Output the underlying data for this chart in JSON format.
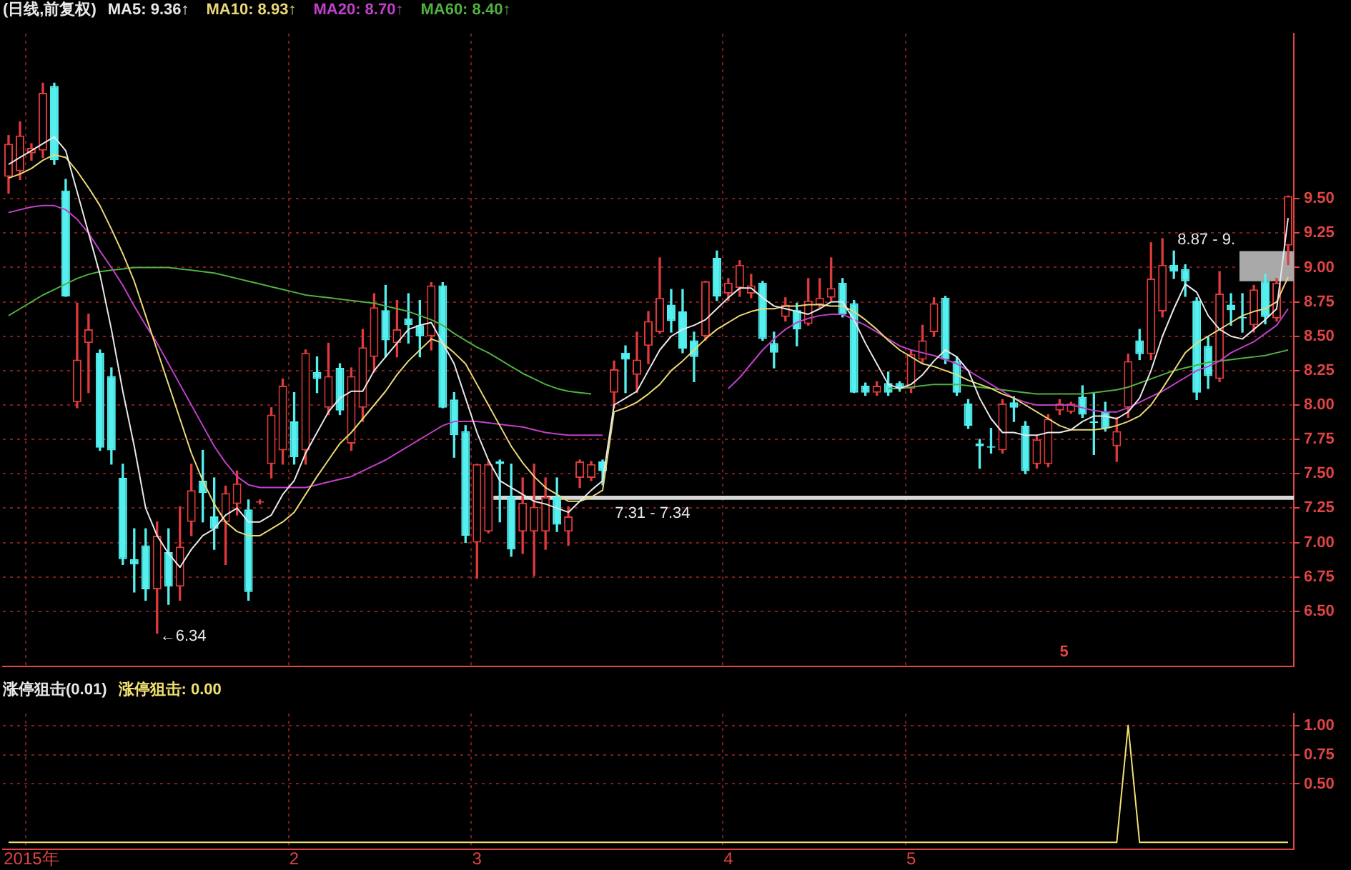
{
  "chart_data": [
    {
      "type": "candlestick",
      "title": "(日线,前复权)",
      "categories": [
        null,
        null,
        null,
        null,
        null,
        null,
        null,
        null,
        null,
        null,
        null,
        null,
        null,
        null,
        null,
        null,
        null,
        null,
        null,
        null,
        null,
        null,
        null,
        null,
        null,
        null,
        null,
        null,
        null,
        null,
        null,
        null,
        null,
        null,
        null,
        null,
        null,
        null,
        null,
        null,
        null,
        null,
        null,
        null,
        null,
        null,
        null,
        null,
        null,
        null,
        null,
        null,
        null,
        null,
        null,
        null,
        null,
        null,
        null,
        null,
        null,
        null,
        null,
        null,
        null,
        null,
        null,
        null,
        null,
        null,
        null,
        null,
        null,
        null,
        null,
        null,
        null,
        null,
        null,
        null,
        null,
        null,
        null,
        null,
        null,
        null,
        null,
        null,
        null,
        null,
        null,
        null,
        null,
        null,
        null,
        null,
        null,
        null,
        null,
        null,
        null,
        null,
        null,
        null,
        null,
        null,
        null,
        null,
        null,
        null,
        null,
        null,
        null
      ],
      "ohlc": [
        [
          9.66,
          9.96,
          9.54,
          9.9
        ],
        [
          9.7,
          10.06,
          9.64,
          9.96
        ],
        [
          9.83,
          9.9,
          9.78,
          9.87
        ],
        [
          9.85,
          10.34,
          9.8,
          10.27
        ],
        [
          10.32,
          10.34,
          9.75,
          9.78
        ],
        [
          9.56,
          9.64,
          8.79,
          8.79
        ],
        [
          8.02,
          8.74,
          7.98,
          8.33
        ],
        [
          8.45,
          8.66,
          8.09,
          8.55
        ],
        [
          8.38,
          8.4,
          7.67,
          7.69
        ],
        [
          8.21,
          8.27,
          7.57,
          7.67
        ],
        [
          7.47,
          7.57,
          6.84,
          6.88
        ],
        [
          6.88,
          7.1,
          6.64,
          6.84
        ],
        [
          6.98,
          7.1,
          6.58,
          6.66
        ],
        [
          6.66,
          7.15,
          6.34,
          7.05
        ],
        [
          6.93,
          7.1,
          6.55,
          6.68
        ],
        [
          6.68,
          7.26,
          6.58,
          6.97
        ],
        [
          7.15,
          7.57,
          7.05,
          7.38
        ],
        [
          7.45,
          7.67,
          7.15,
          7.36
        ],
        [
          7.19,
          7.47,
          6.95,
          7.1
        ],
        [
          7.15,
          7.41,
          6.84,
          7.36
        ],
        [
          7.28,
          7.52,
          7.2,
          7.43
        ],
        [
          7.24,
          7.31,
          6.58,
          6.64
        ],
        [
          7.29,
          7.31,
          7.28,
          7.3
        ],
        [
          7.57,
          7.98,
          7.47,
          7.93
        ],
        [
          7.67,
          8.19,
          7.57,
          8.14
        ],
        [
          7.88,
          8.09,
          7.57,
          7.62
        ],
        [
          7.67,
          8.4,
          7.57,
          8.38
        ],
        [
          8.24,
          8.35,
          8.09,
          8.19
        ],
        [
          7.98,
          8.45,
          7.93,
          8.21
        ],
        [
          8.27,
          8.3,
          7.93,
          7.96
        ],
        [
          7.72,
          8.27,
          7.67,
          8.21
        ],
        [
          7.98,
          8.55,
          7.88,
          8.42
        ],
        [
          8.35,
          8.81,
          8.24,
          8.71
        ],
        [
          8.69,
          8.87,
          8.35,
          8.47
        ],
        [
          8.45,
          8.76,
          8.35,
          8.55
        ],
        [
          8.63,
          8.81,
          8.45,
          8.58
        ],
        [
          8.58,
          8.76,
          8.35,
          8.5
        ],
        [
          8.5,
          8.89,
          8.4,
          8.87
        ],
        [
          8.87,
          8.89,
          7.98,
          7.98
        ],
        [
          8.04,
          8.09,
          7.62,
          7.78
        ],
        [
          7.81,
          7.85,
          7.0,
          7.05
        ],
        [
          7.0,
          7.57,
          6.74,
          7.57
        ],
        [
          7.08,
          7.59,
          7.07,
          7.57
        ],
        [
          7.59,
          7.6,
          7.15,
          7.57
        ],
        [
          7.33,
          7.57,
          6.9,
          6.95
        ],
        [
          7.08,
          7.47,
          6.92,
          7.29
        ],
        [
          7.08,
          7.57,
          6.76,
          7.26
        ],
        [
          7.08,
          7.47,
          6.95,
          7.33
        ],
        [
          7.33,
          7.47,
          7.08,
          7.13
        ],
        [
          7.08,
          7.26,
          6.98,
          7.19
        ],
        [
          7.47,
          7.6,
          7.4,
          7.59
        ],
        [
          7.47,
          7.59,
          7.45,
          7.57
        ],
        [
          7.59,
          7.6,
          7.42,
          7.52
        ],
        [
          8.09,
          8.32,
          7.98,
          8.26
        ],
        [
          8.38,
          8.43,
          8.09,
          8.33
        ],
        [
          8.22,
          8.53,
          8.09,
          8.33
        ],
        [
          8.43,
          8.68,
          8.3,
          8.61
        ],
        [
          8.53,
          9.07,
          8.52,
          8.78
        ],
        [
          8.73,
          8.84,
          8.53,
          8.61
        ],
        [
          8.68,
          8.84,
          8.38,
          8.41
        ],
        [
          8.47,
          8.53,
          8.17,
          8.35
        ],
        [
          8.5,
          8.9,
          8.47,
          8.9
        ],
        [
          9.07,
          9.12,
          8.76,
          8.79
        ],
        [
          8.81,
          8.92,
          8.76,
          8.89
        ],
        [
          8.85,
          9.05,
          8.79,
          9.02
        ],
        [
          8.81,
          8.95,
          8.78,
          8.87
        ],
        [
          8.89,
          8.9,
          8.47,
          8.48
        ],
        [
          8.45,
          8.53,
          8.27,
          8.38
        ],
        [
          8.64,
          8.78,
          8.61,
          8.73
        ],
        [
          8.69,
          8.74,
          8.43,
          8.55
        ],
        [
          8.59,
          8.92,
          8.58,
          8.76
        ],
        [
          8.73,
          8.92,
          8.71,
          8.78
        ],
        [
          8.78,
          9.07,
          8.76,
          8.85
        ],
        [
          8.89,
          8.92,
          8.64,
          8.66
        ],
        [
          8.74,
          8.76,
          8.09,
          8.09
        ],
        [
          8.14,
          8.16,
          8.07,
          8.09
        ],
        [
          8.09,
          8.17,
          8.07,
          8.14
        ],
        [
          8.16,
          8.24,
          8.07,
          8.09
        ],
        [
          8.16,
          8.17,
          8.1,
          8.12
        ],
        [
          8.12,
          8.4,
          8.09,
          8.37
        ],
        [
          8.33,
          8.58,
          8.3,
          8.47
        ],
        [
          8.53,
          8.78,
          8.5,
          8.74
        ],
        [
          8.78,
          8.79,
          8.3,
          8.33
        ],
        [
          8.32,
          8.35,
          8.07,
          8.09
        ],
        [
          8.01,
          8.04,
          7.83,
          7.85
        ],
        [
          7.72,
          7.75,
          7.54,
          7.7
        ],
        [
          7.7,
          7.83,
          7.65,
          7.69
        ],
        [
          7.67,
          8.04,
          7.65,
          8.01
        ],
        [
          8.02,
          8.06,
          7.88,
          7.98
        ],
        [
          7.85,
          7.88,
          7.5,
          7.52
        ],
        [
          7.57,
          7.78,
          7.54,
          7.75
        ],
        [
          7.57,
          7.93,
          7.55,
          7.9
        ],
        [
          7.96,
          8.04,
          7.93,
          8.01
        ],
        [
          7.95,
          8.02,
          7.94,
          8.01
        ],
        [
          8.06,
          8.14,
          7.91,
          7.93
        ],
        [
          7.88,
          8.09,
          7.64,
          7.87
        ],
        [
          7.95,
          8.02,
          7.81,
          7.83
        ],
        [
          7.7,
          7.91,
          7.59,
          7.81
        ],
        [
          7.98,
          8.37,
          7.91,
          8.32
        ],
        [
          8.47,
          8.55,
          8.33,
          8.37
        ],
        [
          8.37,
          9.18,
          8.33,
          8.92
        ],
        [
          8.68,
          9.21,
          8.64,
          9.02
        ],
        [
          9.02,
          9.12,
          8.92,
          8.97
        ],
        [
          8.99,
          9.02,
          8.79,
          8.9
        ],
        [
          8.76,
          8.78,
          8.04,
          8.09
        ],
        [
          8.43,
          8.5,
          8.12,
          8.21
        ],
        [
          8.19,
          8.97,
          8.17,
          8.81
        ],
        [
          8.73,
          8.81,
          8.58,
          8.69
        ],
        [
          8.64,
          8.81,
          8.53,
          8.63
        ],
        [
          8.58,
          8.87,
          8.53,
          8.84
        ],
        [
          8.9,
          8.95,
          8.59,
          8.64
        ],
        [
          8.63,
          8.92,
          8.61,
          8.89
        ],
        [
          9.16,
          9.52,
          9.02,
          9.52
        ]
      ],
      "series": [
        {
          "name": "MA5: 9.36↑",
          "type": "line",
          "color": "#e8e8e8",
          "values": [
            9.75,
            9.8,
            9.85,
            9.9,
            9.95,
            9.85,
            9.55,
            9.25,
            8.95,
            8.55,
            8.1,
            7.7,
            7.25,
            7.05,
            6.92,
            6.82,
            6.95,
            7.05,
            7.1,
            7.2,
            7.25,
            7.15,
            7.15,
            7.2,
            7.35,
            7.45,
            7.65,
            7.8,
            7.95,
            8.05,
            8.1,
            8.1,
            8.25,
            8.35,
            8.45,
            8.55,
            8.58,
            8.6,
            8.45,
            8.3,
            8.05,
            7.8,
            7.6,
            7.45,
            7.4,
            7.35,
            7.3,
            7.28,
            7.25,
            7.22,
            7.3,
            7.38,
            7.45,
            8.0,
            8.05,
            8.1,
            8.25,
            8.4,
            8.5,
            8.55,
            8.58,
            8.62,
            8.7,
            8.78,
            8.85,
            8.85,
            8.78,
            8.72,
            8.7,
            8.68,
            8.66,
            8.7,
            8.75,
            8.75,
            8.62,
            8.45,
            8.3,
            8.15,
            8.12,
            8.15,
            8.22,
            8.32,
            8.4,
            8.35,
            8.25,
            8.05,
            7.9,
            7.8,
            7.8,
            7.78,
            7.78,
            7.8,
            7.8,
            7.82,
            7.88,
            7.92,
            7.92,
            7.9,
            7.95,
            8.05,
            8.25,
            8.5,
            8.7,
            8.88,
            8.82,
            8.65,
            8.55,
            8.5,
            8.48,
            8.55,
            8.62,
            8.7,
            9.36
          ]
        },
        {
          "name": "MA10: 8.93↑",
          "type": "line",
          "color": "#e8d878",
          "values": [
            9.65,
            9.68,
            9.72,
            9.78,
            9.82,
            9.8,
            9.7,
            9.58,
            9.45,
            9.28,
            9.1,
            8.9,
            8.65,
            8.4,
            8.15,
            7.9,
            7.65,
            7.45,
            7.28,
            7.15,
            7.08,
            7.05,
            7.05,
            7.1,
            7.15,
            7.22,
            7.35,
            7.48,
            7.6,
            7.72,
            7.8,
            7.9,
            8.0,
            8.1,
            8.22,
            8.32,
            8.4,
            8.48,
            8.45,
            8.38,
            8.3,
            8.15,
            8.0,
            7.85,
            7.7,
            7.58,
            7.48,
            7.4,
            7.35,
            7.3,
            7.3,
            7.33,
            7.38,
            7.95,
            7.98,
            8.02,
            8.08,
            8.15,
            8.25,
            8.32,
            8.4,
            8.48,
            8.55,
            8.6,
            8.65,
            8.68,
            8.7,
            8.7,
            8.72,
            8.72,
            8.73,
            8.73,
            8.72,
            8.72,
            8.68,
            8.62,
            8.55,
            8.47,
            8.4,
            8.35,
            8.3,
            8.28,
            8.25,
            8.22,
            8.18,
            8.15,
            8.12,
            8.08,
            8.05,
            8.0,
            7.95,
            7.9,
            7.85,
            7.82,
            7.82,
            7.82,
            7.83,
            7.85,
            7.88,
            7.92,
            8.0,
            8.12,
            8.25,
            8.38,
            8.45,
            8.5,
            8.55,
            8.6,
            8.65,
            8.68,
            8.7,
            8.75,
            8.93
          ]
        },
        {
          "name": "MA20: 8.70↑",
          "type": "line",
          "color": "#c040c8",
          "values": [
            9.4,
            9.42,
            9.44,
            9.45,
            9.45,
            9.42,
            9.35,
            9.25,
            9.12,
            9.0,
            8.87,
            8.72,
            8.58,
            8.45,
            8.3,
            8.15,
            8.0,
            7.85,
            7.7,
            7.58,
            7.48,
            7.42,
            7.4,
            7.4,
            7.4,
            7.4,
            7.4,
            7.42,
            7.44,
            7.46,
            7.48,
            7.52,
            7.56,
            7.6,
            7.65,
            7.7,
            7.75,
            7.8,
            7.85,
            7.88,
            7.88,
            7.88,
            7.87,
            7.86,
            7.85,
            7.84,
            7.82,
            7.8,
            7.79,
            7.78,
            7.78,
            7.78,
            7.78,
            null,
            null,
            null,
            null,
            null,
            null,
            null,
            null,
            null,
            null,
            8.12,
            8.2,
            8.3,
            8.4,
            8.48,
            8.55,
            8.6,
            8.63,
            8.65,
            8.66,
            8.66,
            8.62,
            8.58,
            8.53,
            8.48,
            8.43,
            8.4,
            8.38,
            8.36,
            8.33,
            8.3,
            8.25,
            8.2,
            8.15,
            8.1,
            8.05,
            8.02,
            8.0,
            8.0,
            8.0,
            8.0,
            7.98,
            7.96,
            7.95,
            7.95,
            7.98,
            8.02,
            8.06,
            8.1,
            8.15,
            8.2,
            8.25,
            8.28,
            8.32,
            8.38,
            8.42,
            8.46,
            8.52,
            8.58,
            8.7
          ]
        },
        {
          "name": "MA60: 8.40↑",
          "type": "line",
          "color": "#50b040",
          "values": [
            8.65,
            8.7,
            8.75,
            8.8,
            8.84,
            8.88,
            8.92,
            8.95,
            8.97,
            8.98,
            8.99,
            9.0,
            9.0,
            9.0,
            9.0,
            8.99,
            8.98,
            8.97,
            8.96,
            8.94,
            8.92,
            8.9,
            8.88,
            8.86,
            8.84,
            8.82,
            8.8,
            8.79,
            8.78,
            8.77,
            8.76,
            8.75,
            8.74,
            8.72,
            8.7,
            8.68,
            8.65,
            8.62,
            8.58,
            8.52,
            8.47,
            8.42,
            8.38,
            8.33,
            8.28,
            8.23,
            8.19,
            8.15,
            8.12,
            8.1,
            8.09,
            8.08,
            null,
            null,
            null,
            null,
            null,
            null,
            null,
            null,
            null,
            null,
            null,
            null,
            null,
            null,
            null,
            null,
            null,
            null,
            null,
            null,
            null,
            null,
            null,
            null,
            null,
            8.12,
            8.12,
            8.13,
            8.14,
            8.15,
            8.15,
            8.15,
            8.14,
            8.13,
            8.12,
            8.11,
            8.1,
            8.09,
            8.08,
            8.08,
            8.08,
            8.08,
            8.08,
            8.09,
            8.1,
            8.11,
            8.13,
            8.16,
            8.19,
            8.22,
            8.25,
            8.27,
            8.29,
            8.31,
            8.32,
            8.33,
            8.34,
            8.35,
            8.36,
            8.38,
            8.4
          ]
        }
      ],
      "ylim": [
        6.1,
        10.7
      ],
      "yticks": [
        {
          "value": 6.5,
          "label": "6.50"
        },
        {
          "value": 6.75,
          "label": "6.75"
        },
        {
          "value": 7,
          "label": "7.00"
        },
        {
          "value": 7.25,
          "label": "7.25"
        },
        {
          "value": 7.5,
          "label": "7.50"
        },
        {
          "value": 7.75,
          "label": "7.75"
        },
        {
          "value": 8,
          "label": "8.00"
        },
        {
          "value": 8.25,
          "label": "8.25"
        },
        {
          "value": 8.5,
          "label": "8.50"
        },
        {
          "value": 8.75,
          "label": "8.75"
        },
        {
          "value": 9,
          "label": "9.00"
        },
        {
          "value": 9.25,
          "label": "9.25"
        },
        {
          "value": 9.5,
          "label": "9.50"
        }
      ],
      "grid": true,
      "legend": "top left",
      "tick_labels": "y",
      "marker": "none",
      "bands": [
        {
          "axis": "y",
          "from": 7.31,
          "to": 7.34,
          "label": "7.31 - 7.34",
          "color": "#d8d8d8"
        },
        {
          "axis": "y",
          "from": 8.9,
          "to": 9.12,
          "label": "8.87 - 9.",
          "color": "#a8a8a8"
        }
      ],
      "annotations": [
        "←6.34",
        "5"
      ]
    },
    {
      "type": "line",
      "title": "涨停狙击(0.01)",
      "categories": [
        null,
        null,
        "2015年",
        null,
        null,
        null,
        null,
        null,
        null,
        null,
        null,
        null,
        null,
        null,
        null,
        null,
        null,
        null,
        null,
        null,
        null,
        null,
        null,
        null,
        null,
        "2",
        null,
        null,
        null,
        null,
        null,
        null,
        null,
        null,
        null,
        null,
        null,
        null,
        null,
        null,
        null,
        "3",
        null,
        null,
        null,
        null,
        null,
        null,
        null,
        null,
        null,
        null,
        null,
        null,
        null,
        null,
        null,
        null,
        null,
        null,
        null,
        null,
        null,
        "4",
        null,
        null,
        null,
        null,
        null,
        null,
        null,
        null,
        null,
        null,
        null,
        null,
        null,
        null,
        null,
        "5",
        null,
        null,
        null,
        null,
        null,
        null,
        null,
        null,
        null,
        null,
        null,
        null,
        null,
        null,
        null,
        null,
        null,
        null,
        null,
        null,
        null,
        null,
        null,
        null,
        null,
        null,
        null,
        null,
        null,
        null,
        null,
        null,
        null
      ],
      "series": [
        {
          "name": "涨停狙击: 0.00",
          "color": "#f0e070",
          "values": [
            0,
            0,
            0,
            0,
            0,
            0,
            0,
            0,
            0,
            0,
            0,
            0,
            0,
            0,
            0,
            0,
            0,
            0,
            0,
            0,
            0,
            0,
            0,
            0,
            0,
            0,
            0,
            0,
            0,
            0,
            0,
            0,
            0,
            0,
            0,
            0,
            0,
            0,
            0,
            0,
            0,
            0,
            0,
            0,
            0,
            0,
            0,
            0,
            0,
            0,
            0,
            0,
            0,
            0,
            0,
            0,
            0,
            0,
            0,
            0,
            0,
            0,
            0,
            0,
            0,
            0,
            0,
            0,
            0,
            0,
            0,
            0,
            0,
            0,
            0,
            0,
            0,
            0,
            0,
            0,
            0,
            0,
            0,
            0,
            0,
            0,
            0,
            0,
            0,
            0,
            0,
            0,
            0,
            0,
            0,
            0,
            0,
            0,
            1,
            0,
            0,
            0,
            0,
            0,
            0,
            0,
            0,
            0,
            0,
            0,
            0,
            0,
            0
          ]
        }
      ],
      "ylim": [
        -0.06,
        1.1
      ],
      "yticks": [
        {
          "value": 0.5,
          "label": "0.50"
        },
        {
          "value": 0.75,
          "label": "0.75"
        },
        {
          "value": 1,
          "label": "1.00"
        }
      ],
      "grid": true,
      "legend": "top left",
      "marker": "none"
    }
  ]
}
